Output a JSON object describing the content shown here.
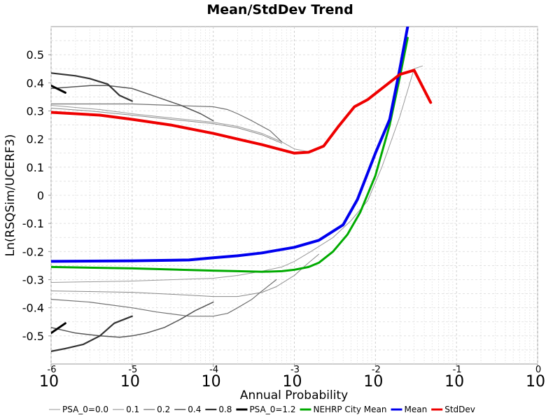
{
  "chart_data": {
    "type": "line",
    "title": "Mean/StdDev Trend",
    "xlabel": "Annual Probability",
    "ylabel": "Ln(RSQSim/UCERF3)",
    "x_scale": "log",
    "xlim": [
      1e-06,
      1
    ],
    "ylim": [
      -0.6,
      0.6
    ],
    "y_ticks": [
      -0.5,
      -0.4,
      -0.3,
      -0.2,
      -0.1,
      0,
      0.1,
      0.2,
      0.3,
      0.4,
      0.5
    ],
    "y_tick_labels": [
      "-0.5",
      "-0.4",
      "-0.3",
      "-0.2",
      "-0.1",
      "0",
      "0.1",
      "0.2",
      "0.3",
      "0.4",
      "0.5"
    ],
    "x_ticks": [
      {
        "base": "10",
        "exp": "-6"
      },
      {
        "base": "10",
        "exp": "-5"
      },
      {
        "base": "10",
        "exp": "-4"
      },
      {
        "base": "10",
        "exp": "-3"
      },
      {
        "base": "10",
        "exp": "-2"
      },
      {
        "base": "10",
        "exp": "-1"
      },
      {
        "base": "10",
        "exp": "0"
      }
    ],
    "grid": true,
    "legend_position": "bottom",
    "series": [
      {
        "name": "PSA_0=0.0",
        "color": "#999999",
        "width": 1,
        "segments": [
          [
            [
              1e-06,
              0.32
            ],
            [
              4e-06,
              0.305
            ],
            [
              1e-05,
              0.29
            ],
            [
              3e-05,
              0.275
            ],
            [
              0.0001,
              0.26
            ],
            [
              0.0002,
              0.245
            ],
            [
              0.0004,
              0.22
            ],
            [
              0.0007,
              0.19
            ],
            [
              0.001,
              0.165
            ],
            [
              0.0015,
              0.155
            ]
          ],
          [
            [
              1e-06,
              -0.31
            ],
            [
              1e-05,
              -0.305
            ],
            [
              0.0001,
              -0.295
            ],
            [
              0.0002,
              -0.285
            ],
            [
              0.0004,
              -0.27
            ],
            [
              0.0007,
              -0.255
            ],
            [
              0.001,
              -0.235
            ],
            [
              0.0016,
              -0.2
            ],
            [
              0.003,
              -0.15
            ],
            [
              0.005,
              -0.09
            ],
            [
              0.008,
              -0.02
            ],
            [
              0.012,
              0.1
            ],
            [
              0.02,
              0.28
            ],
            [
              0.03,
              0.45
            ],
            [
              0.038,
              0.46
            ]
          ]
        ]
      },
      {
        "name": "0.1",
        "color": "#888888",
        "width": 1,
        "segments": [
          [
            [
              1e-06,
              0.31
            ],
            [
              3e-06,
              0.3
            ],
            [
              1e-05,
              0.285
            ],
            [
              3e-05,
              0.27
            ],
            [
              0.0001,
              0.255
            ],
            [
              0.0002,
              0.24
            ],
            [
              0.0004,
              0.215
            ],
            [
              0.0007,
              0.185
            ]
          ],
          [
            [
              1e-06,
              -0.34
            ],
            [
              1e-05,
              -0.345
            ],
            [
              5e-05,
              -0.355
            ],
            [
              0.0001,
              -0.36
            ],
            [
              0.0002,
              -0.36
            ],
            [
              0.0004,
              -0.345
            ],
            [
              0.0006,
              -0.325
            ],
            [
              0.001,
              -0.285
            ],
            [
              0.0015,
              -0.24
            ],
            [
              0.002,
              -0.21
            ]
          ]
        ]
      },
      {
        "name": "0.2",
        "color": "#707070",
        "width": 1.2,
        "segments": [
          [
            [
              1e-06,
              0.325
            ],
            [
              1e-05,
              0.325
            ],
            [
              3e-05,
              0.32
            ],
            [
              0.0001,
              0.315
            ],
            [
              0.00015,
              0.305
            ],
            [
              0.0002,
              0.29
            ],
            [
              0.0003,
              0.265
            ],
            [
              0.0005,
              0.23
            ],
            [
              0.0007,
              0.19
            ]
          ],
          [
            [
              1e-06,
              -0.37
            ],
            [
              3e-06,
              -0.38
            ],
            [
              1e-05,
              -0.4
            ],
            [
              2e-05,
              -0.415
            ],
            [
              5e-05,
              -0.43
            ],
            [
              0.0001,
              -0.43
            ],
            [
              0.00015,
              -0.42
            ],
            [
              0.0002,
              -0.4
            ],
            [
              0.0003,
              -0.37
            ],
            [
              0.0004,
              -0.34
            ],
            [
              0.0006,
              -0.3
            ]
          ]
        ]
      },
      {
        "name": "0.4",
        "color": "#555555",
        "width": 1.5,
        "segments": [
          [
            [
              1e-06,
              0.38
            ],
            [
              3e-06,
              0.39
            ],
            [
              5e-06,
              0.39
            ],
            [
              1e-05,
              0.38
            ],
            [
              2e-05,
              0.35
            ],
            [
              4e-05,
              0.32
            ],
            [
              7e-05,
              0.29
            ],
            [
              0.0001,
              0.265
            ]
          ],
          [
            [
              1e-06,
              -0.47
            ],
            [
              2e-06,
              -0.49
            ],
            [
              4e-06,
              -0.5
            ],
            [
              7e-06,
              -0.505
            ],
            [
              1e-05,
              -0.5
            ],
            [
              1.5e-05,
              -0.49
            ],
            [
              2.5e-05,
              -0.47
            ],
            [
              4e-05,
              -0.44
            ],
            [
              6e-05,
              -0.41
            ],
            [
              0.0001,
              -0.38
            ]
          ]
        ]
      },
      {
        "name": "0.8",
        "color": "#333333",
        "width": 2.2,
        "segments": [
          [
            [
              1e-06,
              0.435
            ],
            [
              2e-06,
              0.425
            ],
            [
              3e-06,
              0.415
            ],
            [
              5e-06,
              0.395
            ],
            [
              7e-06,
              0.355
            ],
            [
              1e-05,
              0.335
            ]
          ],
          [
            [
              1e-06,
              -0.555
            ],
            [
              1.5e-06,
              -0.545
            ],
            [
              2.5e-06,
              -0.53
            ],
            [
              4e-06,
              -0.5
            ],
            [
              6e-06,
              -0.455
            ],
            [
              1e-05,
              -0.43
            ]
          ]
        ]
      },
      {
        "name": "PSA_0=1.2",
        "color": "#000000",
        "width": 3,
        "segments": [
          [
            [
              1e-06,
              0.39
            ],
            [
              1.5e-06,
              0.365
            ]
          ],
          [
            [
              1e-06,
              -0.49
            ],
            [
              1.5e-06,
              -0.455
            ]
          ]
        ]
      },
      {
        "name": "NEHRP City Mean",
        "color": "#00aa00",
        "width": 3,
        "segments": [
          [
            [
              1e-06,
              -0.255
            ],
            [
              1e-05,
              -0.26
            ],
            [
              0.0001,
              -0.268
            ],
            [
              0.0002,
              -0.27
            ],
            [
              0.0004,
              -0.272
            ],
            [
              0.0007,
              -0.27
            ],
            [
              0.001,
              -0.265
            ],
            [
              0.0015,
              -0.255
            ],
            [
              0.002,
              -0.24
            ],
            [
              0.003,
              -0.2
            ],
            [
              0.0045,
              -0.14
            ],
            [
              0.0065,
              -0.06
            ],
            [
              0.01,
              0.07
            ],
            [
              0.015,
              0.25
            ],
            [
              0.02,
              0.42
            ],
            [
              0.025,
              0.56
            ]
          ]
        ]
      },
      {
        "name": "Mean",
        "color": "#0000ee",
        "width": 4,
        "segments": [
          [
            [
              1e-06,
              -0.235
            ],
            [
              1e-05,
              -0.233
            ],
            [
              5e-05,
              -0.23
            ],
            [
              0.0001,
              -0.222
            ],
            [
              0.0002,
              -0.215
            ],
            [
              0.0004,
              -0.205
            ],
            [
              0.001,
              -0.185
            ],
            [
              0.002,
              -0.16
            ],
            [
              0.004,
              -0.105
            ],
            [
              0.006,
              -0.015
            ],
            [
              0.01,
              0.15
            ],
            [
              0.015,
              0.27
            ],
            [
              0.02,
              0.45
            ],
            [
              0.025,
              0.6
            ]
          ]
        ]
      },
      {
        "name": "StdDev",
        "color": "#ee0000",
        "width": 4,
        "segments": [
          [
            [
              1e-06,
              0.295
            ],
            [
              4e-06,
              0.285
            ],
            [
              1e-05,
              0.27
            ],
            [
              3e-05,
              0.25
            ],
            [
              0.0001,
              0.22
            ],
            [
              0.0002,
              0.2
            ],
            [
              0.0004,
              0.18
            ],
            [
              0.001,
              0.15
            ],
            [
              0.0015,
              0.153
            ],
            [
              0.0023,
              0.175
            ],
            [
              0.0035,
              0.245
            ],
            [
              0.0055,
              0.315
            ],
            [
              0.008,
              0.34
            ],
            [
              0.012,
              0.38
            ],
            [
              0.02,
              0.43
            ],
            [
              0.03,
              0.445
            ],
            [
              0.048,
              0.33
            ]
          ]
        ]
      }
    ]
  }
}
